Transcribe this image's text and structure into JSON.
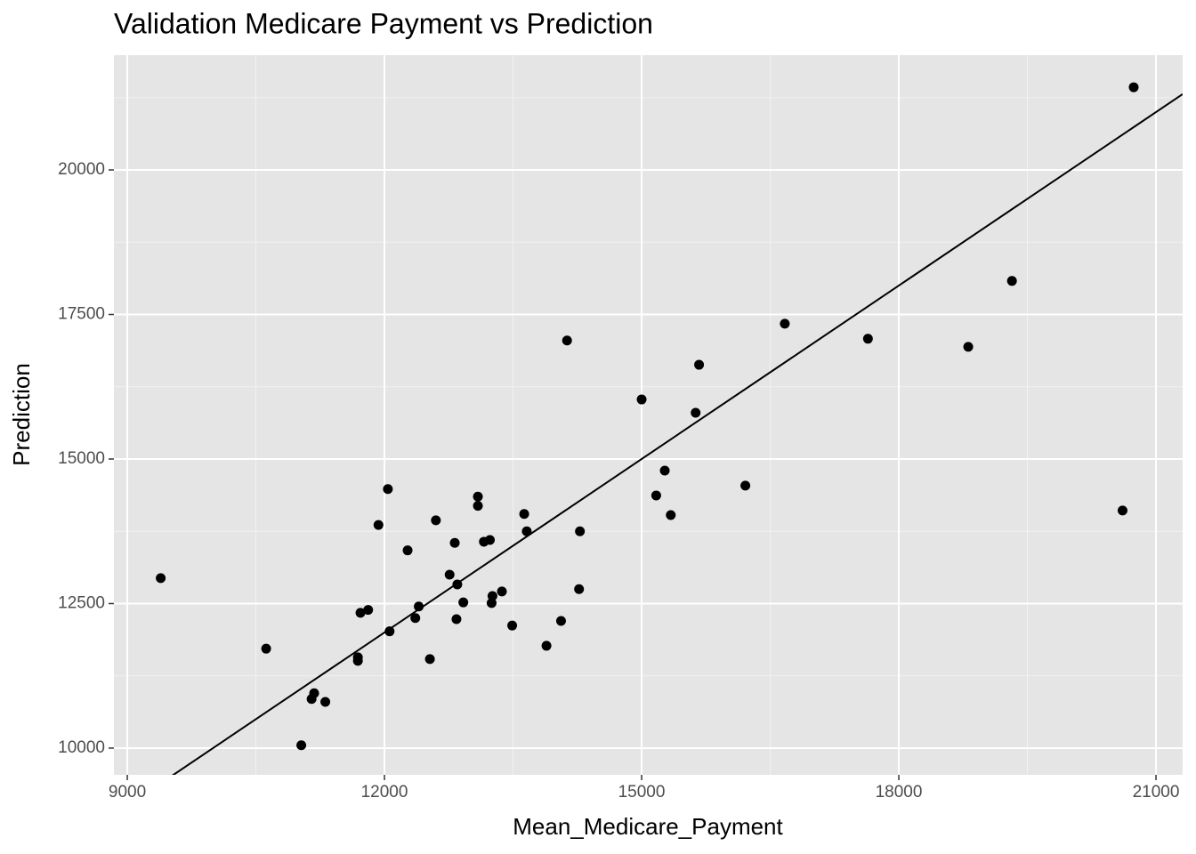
{
  "chart_data": {
    "type": "scatter",
    "title": "Validation Medicare Payment vs Prediction",
    "x_label": "Mean_Medicare_Payment",
    "y_label": "Prediction",
    "xlim": [
      8844,
      21311
    ],
    "ylim": [
      9538,
      21985
    ],
    "xticks": [
      9000,
      12000,
      15000,
      18000,
      21000
    ],
    "yticks": [
      10000,
      12500,
      15000,
      17500,
      20000
    ],
    "grid": true,
    "color": "#000000",
    "reference_line": {
      "slope": 1,
      "intercept": 0
    },
    "series": [
      {
        "name": "points",
        "color": "#000000",
        "x": [
          9390,
          10620,
          11030,
          11150,
          11180,
          11310,
          11690,
          11690,
          11720,
          11810,
          11930,
          12040,
          12060,
          12270,
          12360,
          12400,
          12530,
          12600,
          12760,
          12820,
          12850,
          12840,
          12920,
          13090,
          13090,
          13160,
          13230,
          13250,
          13260,
          13370,
          13490,
          13630,
          13660,
          13890,
          14060,
          14130,
          14270,
          14280,
          15000,
          15170,
          15270,
          15340,
          15630,
          15670,
          16210,
          16670,
          17640,
          18810,
          19320,
          20610,
          20740
        ],
        "values": [
          12940,
          11720,
          10050,
          10850,
          10950,
          10800,
          11570,
          11510,
          12340,
          12390,
          13860,
          14480,
          12020,
          13420,
          12250,
          12450,
          11540,
          13940,
          13000,
          13550,
          12830,
          12230,
          12520,
          14350,
          14190,
          13570,
          13600,
          12510,
          12630,
          12710,
          12120,
          14050,
          13750,
          11770,
          12200,
          17050,
          12750,
          13750,
          16030,
          14370,
          14800,
          14030,
          15800,
          16630,
          14540,
          17340,
          17080,
          16940,
          18080,
          14110,
          21430
        ]
      }
    ]
  }
}
